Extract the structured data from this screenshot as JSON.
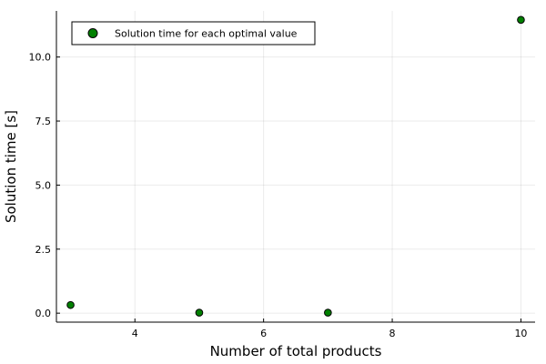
{
  "chart_data": {
    "type": "scatter",
    "title": "",
    "xlabel": "Number of total products",
    "ylabel": "Solution time [s]",
    "xlim": [
      2.78,
      10.22
    ],
    "ylim": [
      -0.35,
      11.8
    ],
    "xticks": [
      4,
      6,
      8,
      10
    ],
    "xtick_labels": [
      "4",
      "6",
      "8",
      "10"
    ],
    "yticks": [
      0,
      2.5,
      5,
      7.5,
      10
    ],
    "ytick_labels": [
      "0.0",
      "2.5",
      "5.0",
      "7.5",
      "10.0"
    ],
    "grid": true,
    "legend_position": "top-left",
    "series": [
      {
        "name": "Solution time for each optimal value",
        "color": "#008000",
        "x": [
          3,
          5,
          7,
          10
        ],
        "y": [
          0.32,
          0.02,
          0.02,
          11.45
        ]
      }
    ]
  }
}
